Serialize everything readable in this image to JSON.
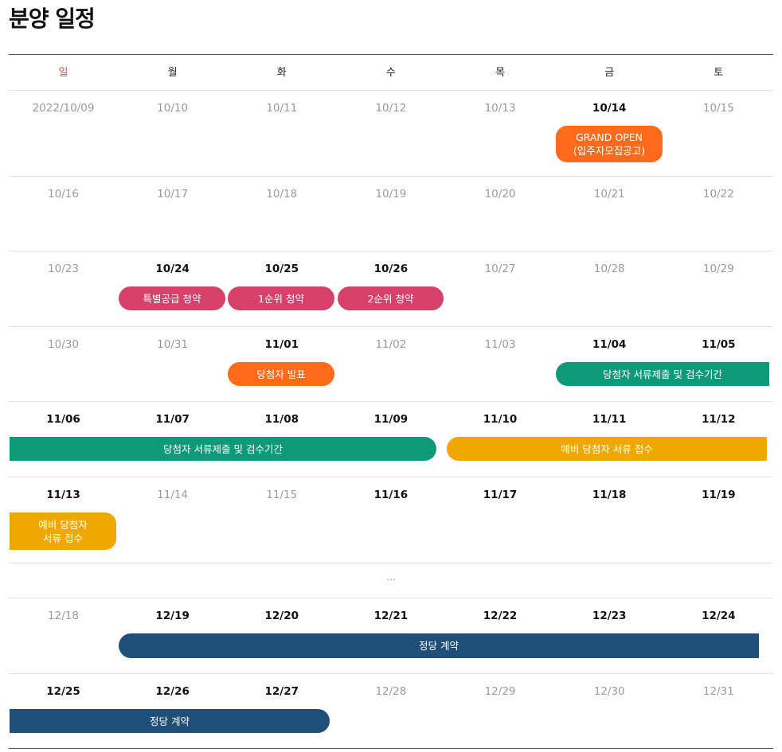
{
  "page": {
    "title": "분양 일정"
  },
  "colors": {
    "orange": "#ff6b1a",
    "crimson": "#d6416a",
    "green": "#0e9a78",
    "yellow": "#f0a800",
    "navy": "#1f4e79",
    "sunday": "#e2571c",
    "inactive_date": "#9a9a9a"
  },
  "calendar": {
    "weekdays": [
      "일",
      "월",
      "화",
      "수",
      "목",
      "금",
      "토"
    ],
    "weeks": [
      {
        "dates": [
          "2022/10/09",
          "10/10",
          "10/11",
          "10/12",
          "10/13",
          "10/14",
          "10/15"
        ],
        "active": [
          false,
          false,
          false,
          false,
          false,
          true,
          false
        ]
      },
      {
        "dates": [
          "10/16",
          "10/17",
          "10/18",
          "10/19",
          "10/20",
          "10/21",
          "10/22"
        ],
        "active": [
          false,
          false,
          false,
          false,
          false,
          false,
          false
        ]
      },
      {
        "dates": [
          "10/23",
          "10/24",
          "10/25",
          "10/26",
          "10/27",
          "10/28",
          "10/29"
        ],
        "active": [
          false,
          true,
          true,
          true,
          false,
          false,
          false
        ]
      },
      {
        "dates": [
          "10/30",
          "10/31",
          "11/01",
          "11/02",
          "11/03",
          "11/04",
          "11/05"
        ],
        "active": [
          false,
          false,
          true,
          false,
          false,
          true,
          true
        ]
      },
      {
        "dates": [
          "11/06",
          "11/07",
          "11/08",
          "11/09",
          "11/10",
          "11/11",
          "11/12"
        ],
        "active": [
          true,
          true,
          true,
          true,
          true,
          true,
          true
        ]
      },
      {
        "dates": [
          "11/13",
          "11/14",
          "11/15",
          "11/16",
          "11/17",
          "11/18",
          "11/19"
        ],
        "active": [
          true,
          false,
          false,
          true,
          true,
          true,
          true
        ]
      },
      {
        "dates": [
          "12/18",
          "12/19",
          "12/20",
          "12/21",
          "12/22",
          "12/23",
          "12/24"
        ],
        "active": [
          false,
          true,
          true,
          true,
          true,
          true,
          true
        ]
      },
      {
        "dates": [
          "12/25",
          "12/26",
          "12/27",
          "12/28",
          "12/29",
          "12/30",
          "12/31"
        ],
        "active": [
          true,
          true,
          true,
          false,
          false,
          false,
          false
        ]
      }
    ],
    "gap_marker": "…",
    "events": [
      {
        "label": "GRAND OPEN\n(입주자모집공고)",
        "color": "orange"
      },
      {
        "label": "특별공급 청약",
        "color": "crimson"
      },
      {
        "label": "1순위 청약",
        "color": "crimson"
      },
      {
        "label": "2순위 청약",
        "color": "crimson"
      },
      {
        "label": "당첨자 발표",
        "color": "orange"
      },
      {
        "label": "당첨자 서류제출 및 검수기간",
        "color": "green"
      },
      {
        "label": "당첨자 서류제출 및 검수기간",
        "color": "green"
      },
      {
        "label": "예비 당첨자 서류 접수",
        "color": "yellow"
      },
      {
        "label": "예비 당첨자\n서류 접수",
        "color": "yellow"
      },
      {
        "label": "정당 계약",
        "color": "navy"
      },
      {
        "label": "정당 계약",
        "color": "navy"
      }
    ]
  }
}
